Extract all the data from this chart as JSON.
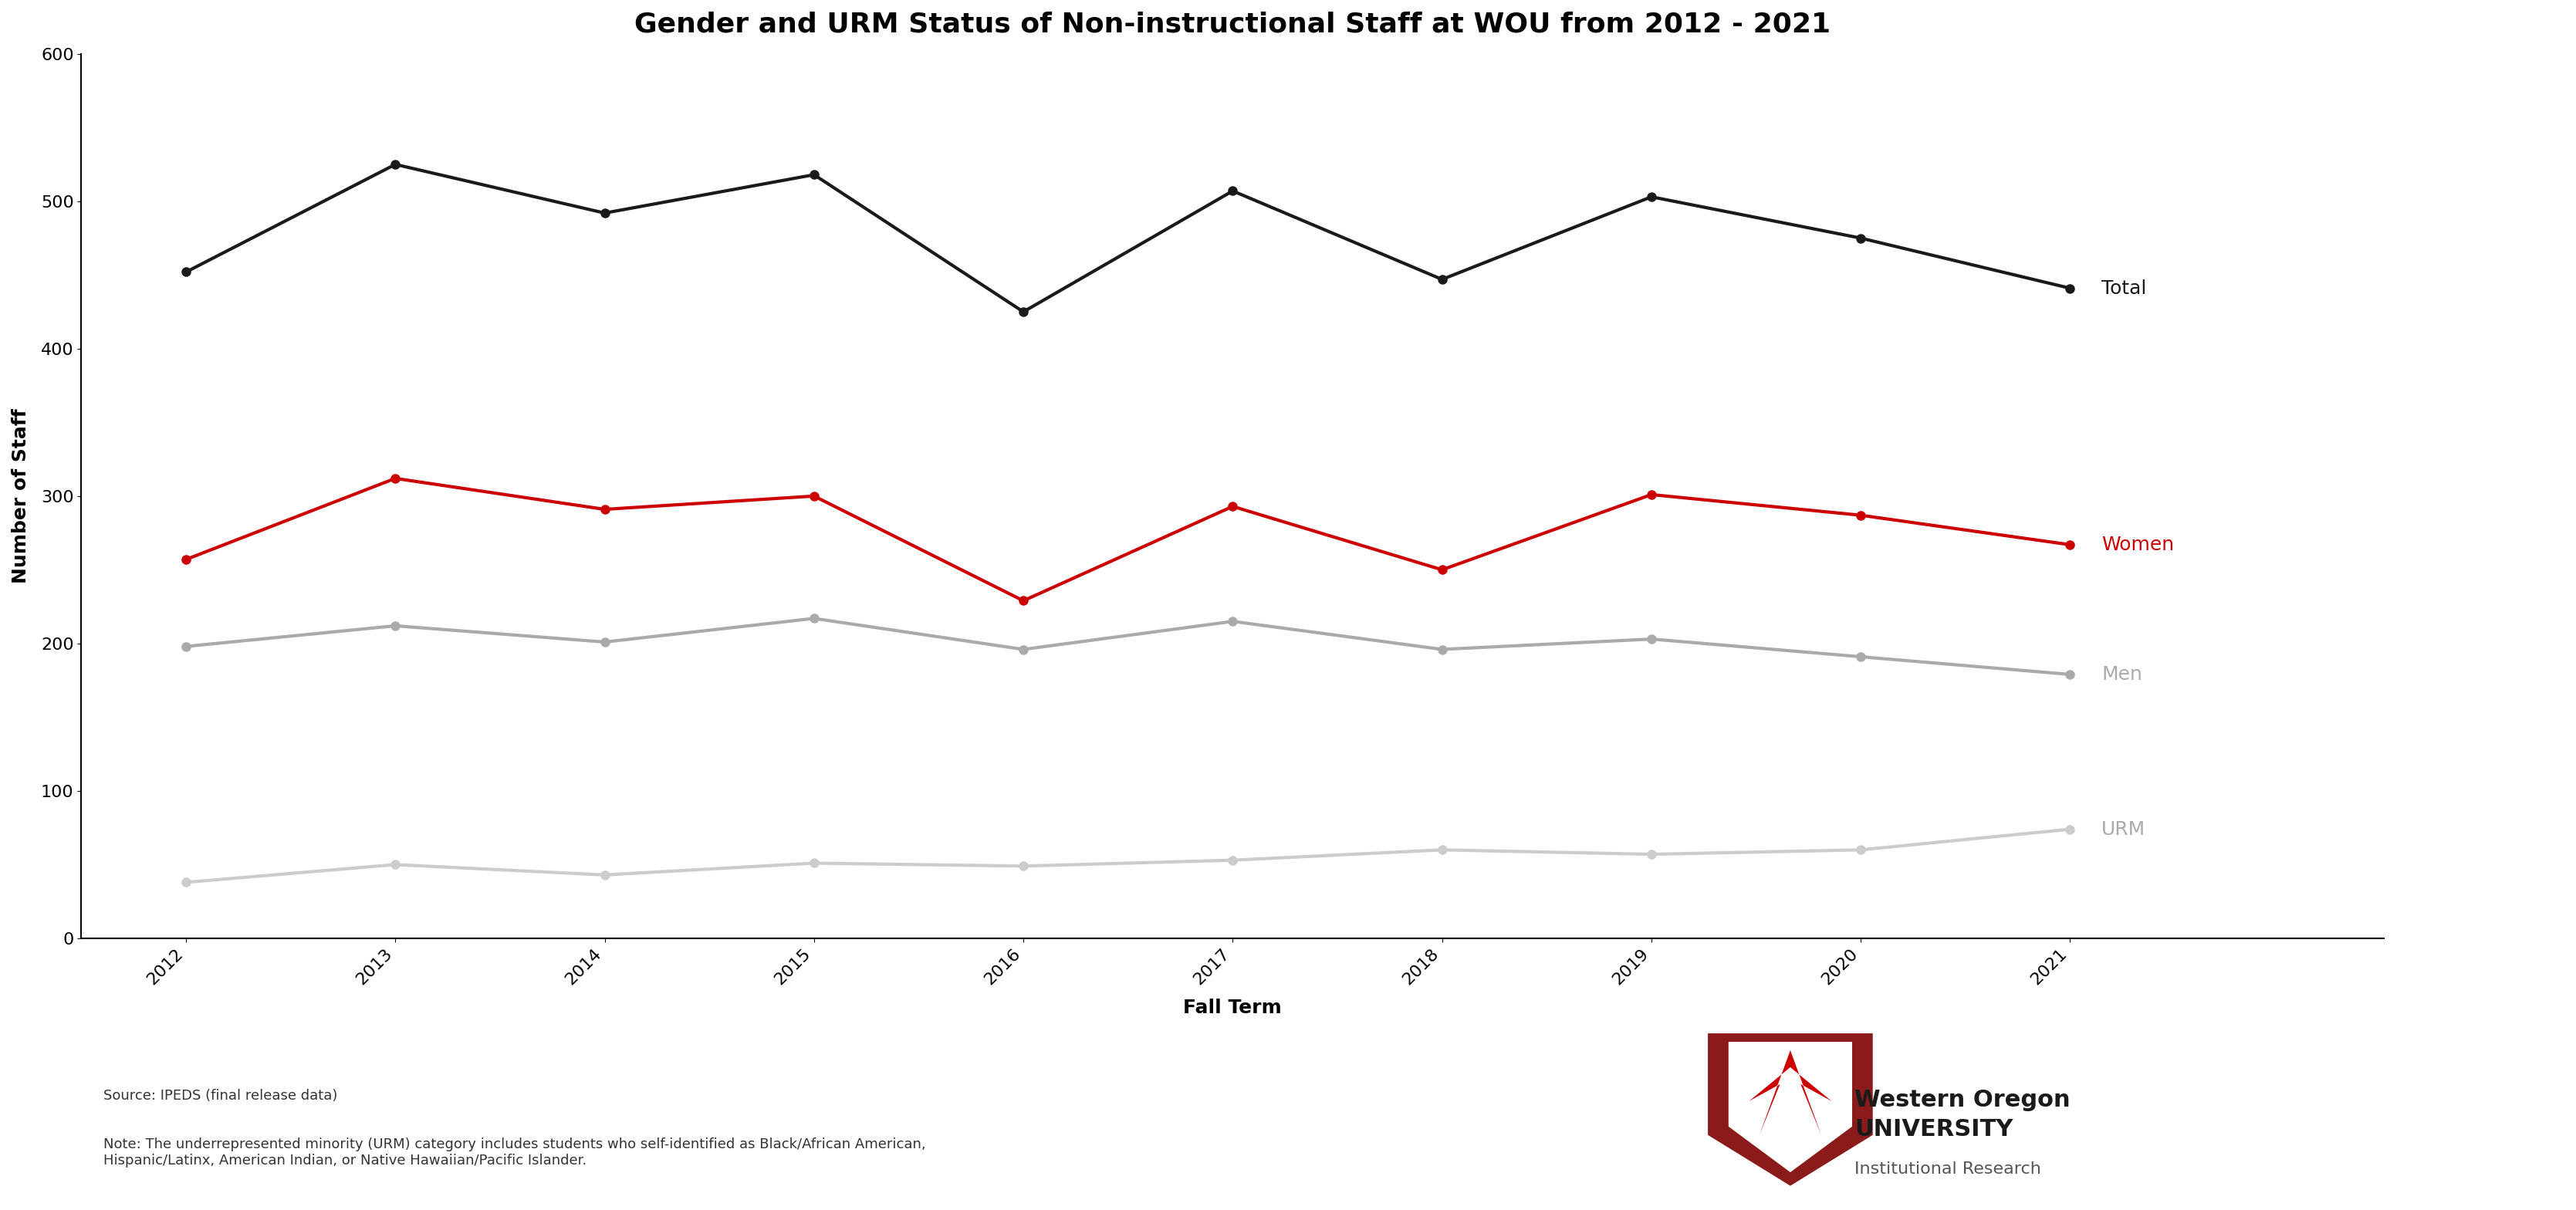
{
  "title": "Gender and URM Status of Non-instructional Staff at WOU from 2012 - 2021",
  "xlabel": "Fall Term",
  "ylabel": "Number of Staff",
  "years": [
    2012,
    2013,
    2014,
    2015,
    2016,
    2017,
    2018,
    2019,
    2020,
    2021
  ],
  "total": [
    452,
    525,
    492,
    518,
    425,
    507,
    447,
    503,
    475,
    441
  ],
  "women": [
    257,
    312,
    291,
    300,
    229,
    293,
    250,
    301,
    287,
    267
  ],
  "men": [
    198,
    212,
    201,
    217,
    196,
    215,
    196,
    203,
    191,
    179
  ],
  "urm": [
    38,
    50,
    43,
    51,
    49,
    53,
    60,
    57,
    60,
    74
  ],
  "total_color": "#1a1a1a",
  "women_color": "#cc0000",
  "men_color": "#aaaaaa",
  "urm_color": "#cccccc",
  "ylim": [
    0,
    600
  ],
  "yticks": [
    0,
    100,
    200,
    300,
    400,
    500,
    600
  ],
  "source_text": "Source: IPEDS (final release data)",
  "note_text": "Note: The underrepresented minority (URM) category includes students who self-identified as Black/African American,\nHispanic/Latinx, American Indian, or Native Hawaiian/Pacific Islander.",
  "wou_text": "Western Oregon\nUNIVERSITY",
  "inst_text": "Institutional Research",
  "title_fontsize": 26,
  "label_fontsize": 18,
  "tick_fontsize": 16,
  "legend_fontsize": 18,
  "note_fontsize": 13,
  "linewidth": 3,
  "markersize": 8
}
